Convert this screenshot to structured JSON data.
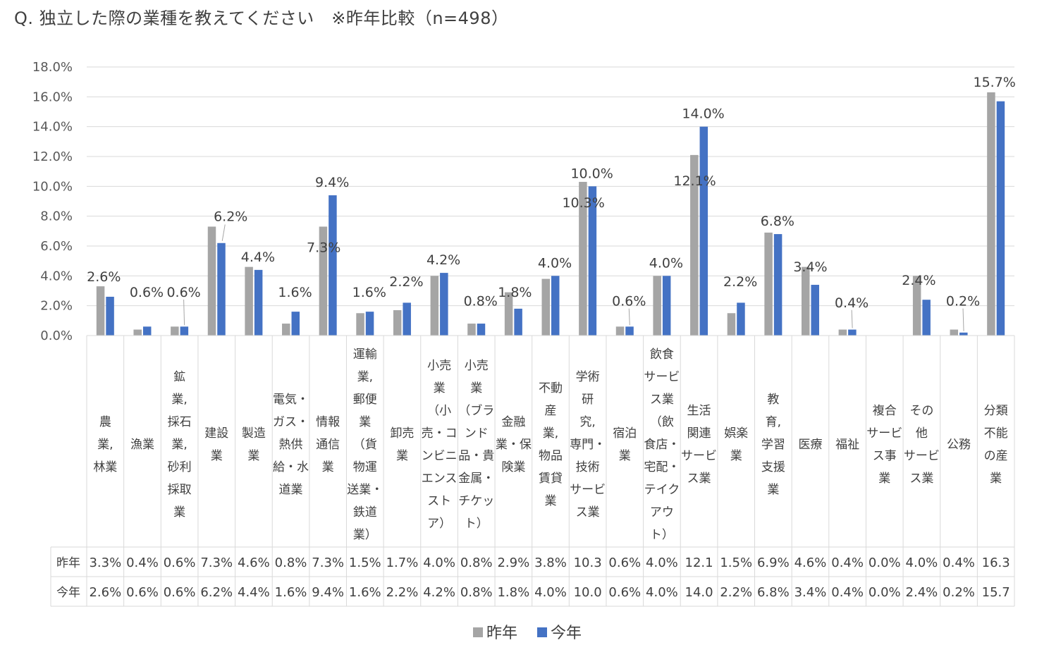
{
  "title": "Q. 独立した際の業種を教えてください　※昨年比較（n=498）",
  "colors": {
    "last_year": "#A5A5A5",
    "this_year": "#4472C4",
    "grid": "#D9D9D9",
    "text": "#404040"
  },
  "chart_data": {
    "type": "bar",
    "title": "Q. 独立した際の業種を教えてください　※昨年比較（n=498）",
    "ylim": [
      0,
      18
    ],
    "yticks": [
      "0.0%",
      "2.0%",
      "4.0%",
      "6.0%",
      "8.0%",
      "10.0%",
      "12.0%",
      "14.0%",
      "16.0%",
      "18.0%"
    ],
    "grid": true,
    "legend_position": "bottom",
    "categories": [
      [
        "農",
        "業,",
        "林業"
      ],
      [
        "漁業"
      ],
      [
        "鉱",
        "業,",
        "採石",
        "業,",
        "砂利",
        "採取",
        "業"
      ],
      [
        "建設",
        "業"
      ],
      [
        "製造",
        "業"
      ],
      [
        "電気・",
        "ガス・",
        "熱供",
        "給・水",
        "道業"
      ],
      [
        "情報",
        "通信",
        "業"
      ],
      [
        "運輸",
        "業,",
        "郵便",
        "業",
        "（貨",
        "物運",
        "送業・",
        "鉄道",
        "業）"
      ],
      [
        "卸売",
        "業"
      ],
      [
        "小売",
        "業",
        "（小",
        "売・コ",
        "ンビニ",
        "エンス",
        "スト",
        "ア）"
      ],
      [
        "小売",
        "業",
        "（ブラ",
        "ンド",
        "品・貴",
        "金属・",
        "チケッ",
        "ト）"
      ],
      [
        "金融",
        "業・保",
        "険業"
      ],
      [
        "不動",
        "産",
        "業,",
        "物品",
        "賃貸",
        "業"
      ],
      [
        "学術",
        "研",
        "究,",
        "専門・",
        "技術",
        "サービ",
        "ス業"
      ],
      [
        "宿泊",
        "業"
      ],
      [
        "飲食",
        "サービ",
        "ス業",
        "（飲",
        "食店・",
        "宅配・",
        "テイク",
        "アウ",
        "ト）"
      ],
      [
        "生活",
        "関連",
        "サービ",
        "ス業"
      ],
      [
        "娯楽",
        "業"
      ],
      [
        "教",
        "育,",
        "学習",
        "支援",
        "業"
      ],
      [
        "医療"
      ],
      [
        "福祉"
      ],
      [
        "複合",
        "サービ",
        "ス事",
        "業"
      ],
      [
        "その",
        "他",
        "サービ",
        "ス業"
      ],
      [
        "公務"
      ],
      [
        "分類",
        "不能",
        "の産",
        "業"
      ]
    ],
    "series": [
      {
        "name": "昨年",
        "values": [
          3.3,
          0.4,
          0.6,
          7.3,
          4.6,
          0.8,
          7.3,
          1.5,
          1.7,
          4.0,
          0.8,
          2.9,
          3.8,
          10.3,
          0.6,
          4.0,
          12.1,
          1.5,
          6.9,
          4.6,
          0.4,
          0.0,
          4.0,
          0.4,
          16.3
        ],
        "table_values": [
          "3.3%",
          "0.4%",
          "0.6%",
          "7.3%",
          "4.6%",
          "0.8%",
          "7.3%",
          "1.5%",
          "1.7%",
          "4.0%",
          "0.8%",
          "2.9%",
          "3.8%",
          "10.3",
          "0.6%",
          "4.0%",
          "12.1",
          "1.5%",
          "6.9%",
          "4.6%",
          "0.4%",
          "0.0%",
          "4.0%",
          "0.4%",
          "16.3"
        ],
        "data_labels": [
          {
            "i": 6,
            "text": "7.3%"
          },
          {
            "i": 13,
            "text": "10.3%"
          },
          {
            "i": 16,
            "text": "12.1%"
          }
        ]
      },
      {
        "name": "今年",
        "values": [
          2.6,
          0.6,
          0.6,
          6.2,
          4.4,
          1.6,
          9.4,
          1.6,
          2.2,
          4.2,
          0.8,
          1.8,
          4.0,
          10.0,
          0.6,
          4.0,
          14.0,
          2.2,
          6.8,
          3.4,
          0.4,
          0.0,
          2.4,
          0.2,
          15.7
        ],
        "table_values": [
          "2.6%",
          "0.6%",
          "0.6%",
          "6.2%",
          "4.4%",
          "1.6%",
          "9.4%",
          "1.6%",
          "2.2%",
          "4.2%",
          "0.8%",
          "1.8%",
          "4.0%",
          "10.0",
          "0.6%",
          "4.0%",
          "14.0",
          "2.2%",
          "6.8%",
          "3.4%",
          "0.4%",
          "0.0%",
          "2.4%",
          "0.2%",
          "15.7"
        ],
        "data_labels": [
          {
            "i": 0,
            "text": "2.6%"
          },
          {
            "i": 1,
            "text": "0.6%"
          },
          {
            "i": 2,
            "text": "0.6%"
          },
          {
            "i": 3,
            "text": "6.2%"
          },
          {
            "i": 4,
            "text": "4.4%"
          },
          {
            "i": 5,
            "text": "1.6%"
          },
          {
            "i": 6,
            "text": "9.4%"
          },
          {
            "i": 7,
            "text": "1.6%"
          },
          {
            "i": 8,
            "text": "2.2%"
          },
          {
            "i": 9,
            "text": "4.2%"
          },
          {
            "i": 10,
            "text": "0.8%"
          },
          {
            "i": 11,
            "text": "1.8%"
          },
          {
            "i": 12,
            "text": "4.0%"
          },
          {
            "i": 13,
            "text": "10.0%"
          },
          {
            "i": 14,
            "text": "0.6%"
          },
          {
            "i": 15,
            "text": "4.0%"
          },
          {
            "i": 16,
            "text": "14.0%"
          },
          {
            "i": 17,
            "text": "2.2%"
          },
          {
            "i": 18,
            "text": "6.8%"
          },
          {
            "i": 19,
            "text": "3.4%"
          },
          {
            "i": 20,
            "text": "0.4%"
          },
          {
            "i": 22,
            "text": "2.4%"
          },
          {
            "i": 23,
            "text": "0.2%"
          },
          {
            "i": 24,
            "text": "15.7%"
          }
        ]
      }
    ]
  }
}
